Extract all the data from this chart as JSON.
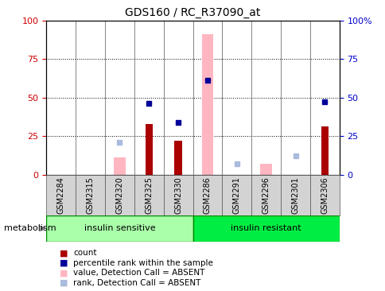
{
  "title": "GDS160 / RC_R37090_at",
  "samples": [
    "GSM2284",
    "GSM2315",
    "GSM2320",
    "GSM2325",
    "GSM2330",
    "GSM2286",
    "GSM2291",
    "GSM2296",
    "GSM2301",
    "GSM2306"
  ],
  "count": [
    0,
    0,
    0,
    33,
    22,
    0,
    0,
    0,
    0,
    31
  ],
  "percentile_rank": [
    null,
    null,
    null,
    46,
    34,
    61,
    null,
    null,
    null,
    47
  ],
  "value_absent": [
    null,
    null,
    11,
    null,
    null,
    91,
    null,
    7,
    null,
    null
  ],
  "rank_absent": [
    null,
    null,
    21,
    null,
    null,
    null,
    7,
    null,
    12,
    null
  ],
  "ylim": [
    0,
    100
  ],
  "yticks": [
    0,
    25,
    50,
    75,
    100
  ],
  "grid_values": [
    25,
    50,
    75
  ],
  "colors": {
    "count": "#AA0000",
    "percentile_rank": "#000099",
    "value_absent": "#FFB6C1",
    "rank_absent": "#AABBDD",
    "left_tick": "#CC0000",
    "right_tick": "#0000CC",
    "sample_bg": "#D3D3D3",
    "grid": "#000000",
    "group_sensitive": "#AAFFAA",
    "group_resistant": "#00EE44",
    "group_border": "#008800"
  },
  "legend": [
    {
      "label": "count",
      "color": "#AA0000"
    },
    {
      "label": "percentile rank within the sample",
      "color": "#000099"
    },
    {
      "label": "value, Detection Call = ABSENT",
      "color": "#FFB6C1"
    },
    {
      "label": "rank, Detection Call = ABSENT",
      "color": "#AABBDD"
    }
  ],
  "group_sensitive_range": [
    0,
    5
  ],
  "group_resistant_range": [
    5,
    10
  ],
  "figsize": [
    4.85,
    3.66
  ],
  "dpi": 100
}
